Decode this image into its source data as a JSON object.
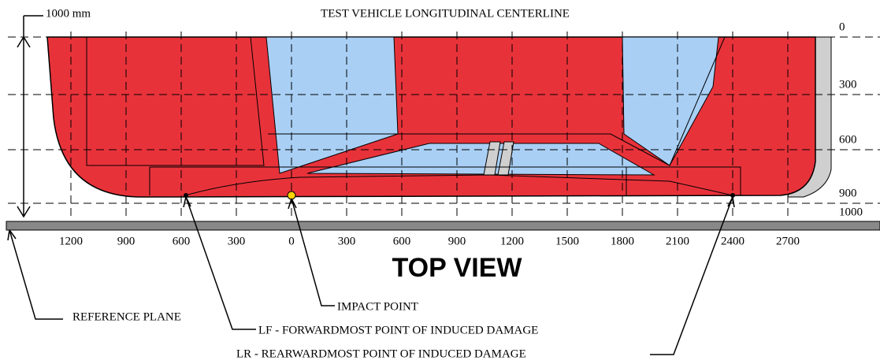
{
  "header": {
    "scale": "1000 mm",
    "title": "TEST VEHICLE  LONGITUDINAL CENTERLINE"
  },
  "lateral_ticks": [
    "0",
    "300",
    "600",
    "900",
    "1000"
  ],
  "longitudinal_ticks": [
    "1200",
    "900",
    "600",
    "300",
    "0",
    "300",
    "600",
    "900",
    "1200",
    "1500",
    "1800",
    "2100",
    "2400",
    "2700"
  ],
  "view": "TOP VIEW",
  "callouts": {
    "impact_point": "IMPACT POINT",
    "reference_plane": "REFERENCE PLANE",
    "lf": "LF - FORWARDMOST POINT OF INDUCED DAMAGE",
    "lr": "LR - REARWARDMOST POINT OF INDUCED DAMAGE"
  }
}
